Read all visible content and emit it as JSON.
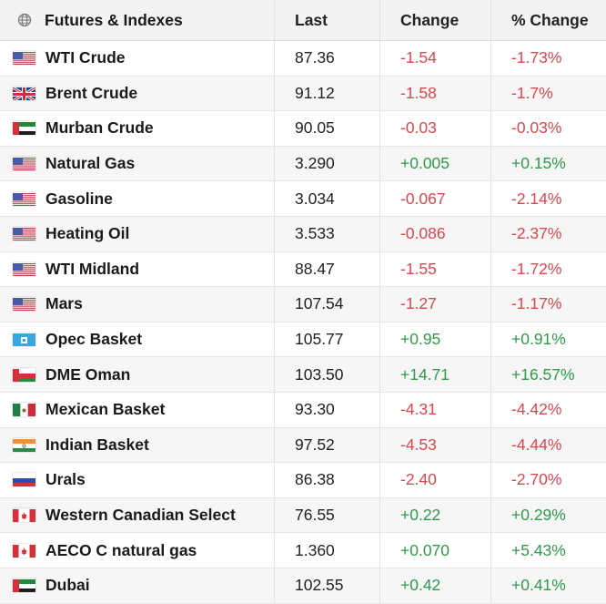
{
  "header": {
    "name": "Futures & Indexes",
    "last": "Last",
    "change": "Change",
    "pct_change": "% Change",
    "icon": "globe-icon"
  },
  "colors": {
    "negative": "#d9474d",
    "positive": "#2e9a4a"
  },
  "rows": [
    {
      "name": "WTI Crude",
      "flag": "us",
      "last": "87.36",
      "change": "-1.54",
      "pct": "-1.73%"
    },
    {
      "name": "Brent Crude",
      "flag": "uk",
      "last": "91.12",
      "change": "-1.58",
      "pct": "-1.7%"
    },
    {
      "name": "Murban Crude",
      "flag": "ae",
      "last": "90.05",
      "change": "-0.03",
      "pct": "-0.03%"
    },
    {
      "name": "Natural Gas",
      "flag": "us",
      "last": "3.290",
      "change": "+0.005",
      "pct": "+0.15%"
    },
    {
      "name": "Gasoline",
      "flag": "us",
      "last": "3.034",
      "change": "-0.067",
      "pct": "-2.14%"
    },
    {
      "name": "Heating Oil",
      "flag": "us",
      "last": "3.533",
      "change": "-0.086",
      "pct": "-2.37%"
    },
    {
      "name": "WTI Midland",
      "flag": "us",
      "last": "88.47",
      "change": "-1.55",
      "pct": "-1.72%"
    },
    {
      "name": "Mars",
      "flag": "us",
      "last": "107.54",
      "change": "-1.27",
      "pct": "-1.17%"
    },
    {
      "name": "Opec Basket",
      "flag": "opec",
      "last": "105.77",
      "change": "+0.95",
      "pct": "+0.91%"
    },
    {
      "name": "DME Oman",
      "flag": "om",
      "last": "103.50",
      "change": "+14.71",
      "pct": "+16.57%"
    },
    {
      "name": "Mexican Basket",
      "flag": "mx",
      "last": "93.30",
      "change": "-4.31",
      "pct": "-4.42%"
    },
    {
      "name": "Indian Basket",
      "flag": "in",
      "last": "97.52",
      "change": "-4.53",
      "pct": "-4.44%"
    },
    {
      "name": "Urals",
      "flag": "ru",
      "last": "86.38",
      "change": "-2.40",
      "pct": "-2.70%"
    },
    {
      "name": "Western Canadian Select",
      "flag": "ca",
      "last": "76.55",
      "change": "+0.22",
      "pct": "+0.29%"
    },
    {
      "name": "AECO C natural gas",
      "flag": "ca",
      "last": "1.360",
      "change": "+0.070",
      "pct": "+5.43%"
    },
    {
      "name": "Dubai",
      "flag": "ae",
      "last": "102.55",
      "change": "+0.42",
      "pct": "+0.41%"
    }
  ]
}
